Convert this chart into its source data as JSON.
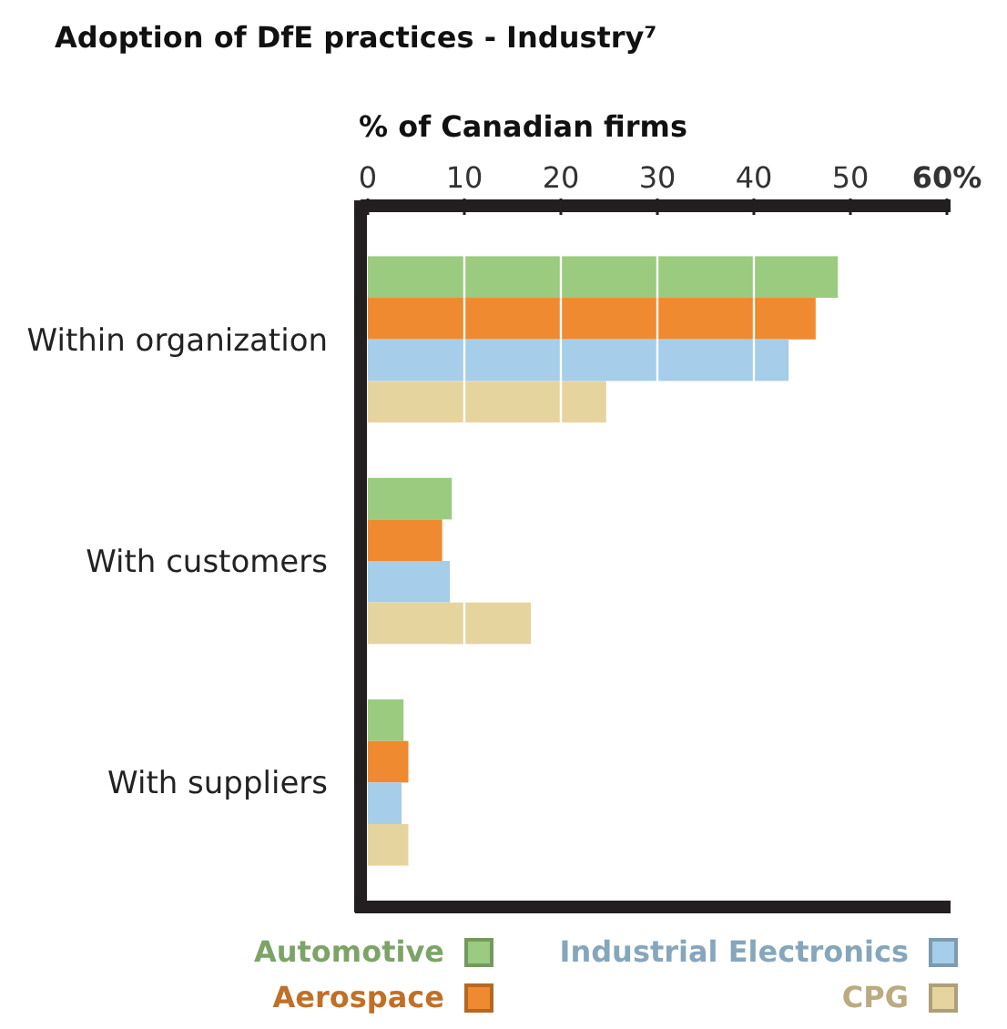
{
  "chart_data": {
    "type": "bar",
    "orientation": "horizontal",
    "title": "Adoption of DfE practices - Industry⁷",
    "xlabel": "% of Canadian firms",
    "categories": [
      "Within organization",
      "With customers",
      "With suppliers"
    ],
    "series": [
      {
        "name": "Automotive",
        "color": "#9acb7f",
        "values": [
          48.7,
          8.7,
          3.7
        ]
      },
      {
        "name": "Aerospace",
        "color": "#ef8a30",
        "values": [
          46.4,
          7.7,
          4.2
        ]
      },
      {
        "name": "Industrial Electronics",
        "color": "#a6cde9",
        "values": [
          43.6,
          8.5,
          3.5
        ]
      },
      {
        "name": "CPG",
        "color": "#e6d49f",
        "values": [
          24.7,
          16.9,
          4.2
        ]
      }
    ],
    "xlim": [
      0,
      60
    ],
    "xticks": [
      0,
      10,
      20,
      30,
      40,
      50,
      {
        "value": 60,
        "label": "60%"
      }
    ],
    "grid": "x",
    "legend": "bottom"
  }
}
